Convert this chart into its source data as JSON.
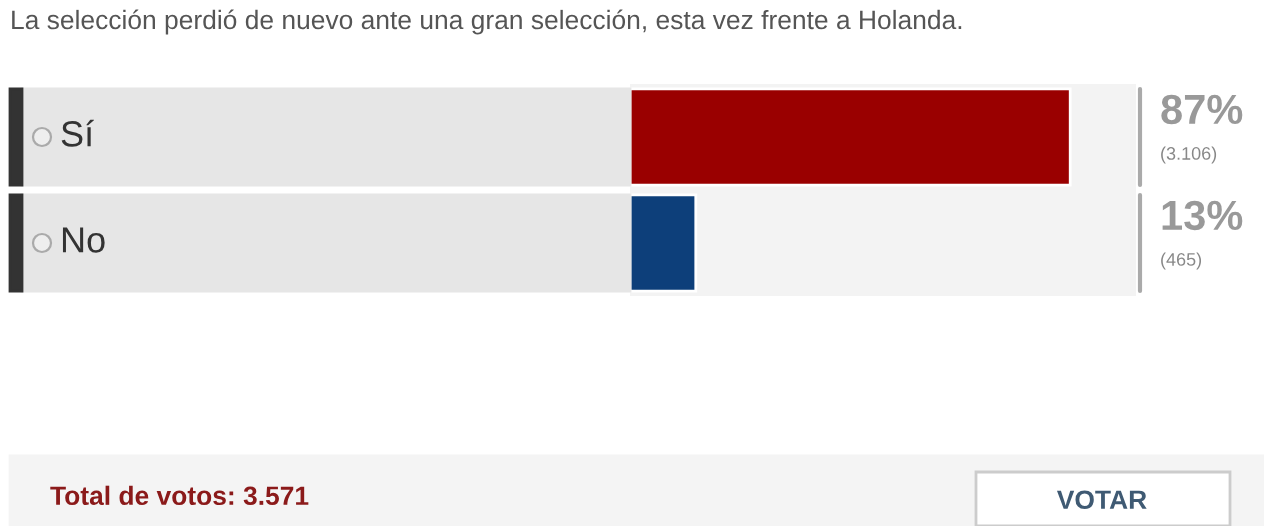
{
  "chart_data": {
    "type": "bar",
    "orientation": "horizontal",
    "title": "La selección perdió de nuevo ante una gran selección, esta vez frente a Holanda.",
    "categories": [
      "Sí",
      "No"
    ],
    "values": [
      87,
      13
    ],
    "colors": [
      "#9a0000",
      "#0d3f7a"
    ],
    "xlim": [
      0,
      100
    ],
    "tick_labels": "y",
    "value_labels": [
      "87%",
      "13%"
    ],
    "annotations": [
      "(3.106)",
      "(465)",
      "Total de votos: 3.571",
      "VOTAR"
    ],
    "legend": false
  }
}
